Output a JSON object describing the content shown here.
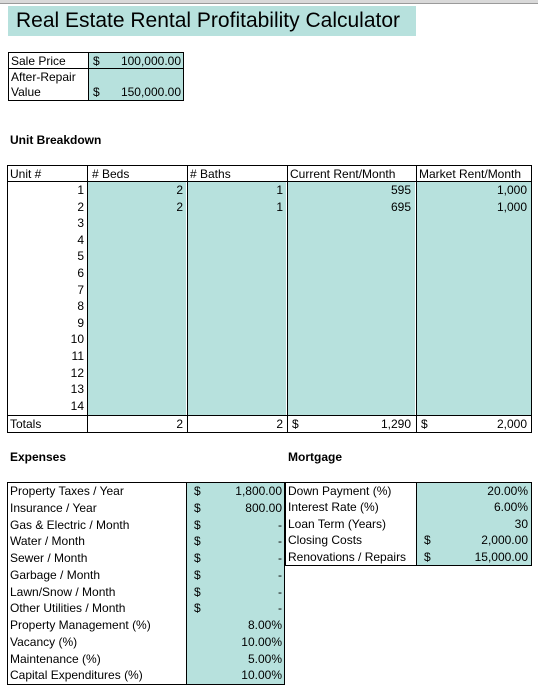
{
  "title": "Real Estate Rental Profitability Calculator",
  "purchase": {
    "sale_price_label": "Sale Price",
    "sale_price_cur": "$",
    "sale_price_value": "100,000.00",
    "arv_label_1": "After-Repair",
    "arv_label_2": "Value",
    "arv_cur": "$",
    "arv_value": "150,000.00"
  },
  "units": {
    "section_title": "Unit Breakdown",
    "headers": {
      "unit": "Unit #",
      "beds": "# Beds",
      "baths": "# Baths",
      "current": "Current Rent/Month",
      "market": "Market Rent/Month"
    },
    "rows": [
      {
        "unit": "1",
        "beds": "2",
        "baths": "1",
        "current": "595",
        "market": "1,000"
      },
      {
        "unit": "2",
        "beds": "2",
        "baths": "1",
        "current": "695",
        "market": "1,000"
      },
      {
        "unit": "3",
        "beds": "",
        "baths": "",
        "current": "",
        "market": ""
      },
      {
        "unit": "4",
        "beds": "",
        "baths": "",
        "current": "",
        "market": ""
      },
      {
        "unit": "5",
        "beds": "",
        "baths": "",
        "current": "",
        "market": ""
      },
      {
        "unit": "6",
        "beds": "",
        "baths": "",
        "current": "",
        "market": ""
      },
      {
        "unit": "7",
        "beds": "",
        "baths": "",
        "current": "",
        "market": ""
      },
      {
        "unit": "8",
        "beds": "",
        "baths": "",
        "current": "",
        "market": ""
      },
      {
        "unit": "9",
        "beds": "",
        "baths": "",
        "current": "",
        "market": ""
      },
      {
        "unit": "10",
        "beds": "",
        "baths": "",
        "current": "",
        "market": ""
      },
      {
        "unit": "11",
        "beds": "",
        "baths": "",
        "current": "",
        "market": ""
      },
      {
        "unit": "12",
        "beds": "",
        "baths": "",
        "current": "",
        "market": ""
      },
      {
        "unit": "13",
        "beds": "",
        "baths": "",
        "current": "",
        "market": ""
      },
      {
        "unit": "14",
        "beds": "",
        "baths": "",
        "current": "",
        "market": ""
      }
    ],
    "totals": {
      "label": "Totals",
      "beds": "2",
      "baths": "2",
      "current_cur": "$",
      "current": "1,290",
      "market_cur": "$",
      "market": "2,000"
    }
  },
  "expenses": {
    "section_title": "Expenses",
    "items": [
      {
        "label": "Property Taxes / Year",
        "cur": "$",
        "value": "1,800.00"
      },
      {
        "label": "Insurance / Year",
        "cur": "$",
        "value": "800.00"
      },
      {
        "label": "Gas & Electric / Month",
        "cur": "$",
        "value": "-"
      },
      {
        "label": "Water / Month",
        "cur": "$",
        "value": "-"
      },
      {
        "label": "Sewer / Month",
        "cur": "$",
        "value": "-"
      },
      {
        "label": "Garbage / Month",
        "cur": "$",
        "value": "-"
      },
      {
        "label": "Lawn/Snow / Month",
        "cur": "$",
        "value": "-"
      },
      {
        "label": "Other Utilities / Month",
        "cur": "$",
        "value": "-"
      },
      {
        "label": "Property Management (%)",
        "cur": "",
        "value": "8.00%"
      },
      {
        "label": "Vacancy (%)",
        "cur": "",
        "value": "10.00%"
      },
      {
        "label": "Maintenance (%)",
        "cur": "",
        "value": "5.00%"
      },
      {
        "label": "Capital Expenditures (%)",
        "cur": "",
        "value": "10.00%"
      }
    ]
  },
  "mortgage": {
    "section_title": "Mortgage",
    "items": [
      {
        "label": "Down Payment (%)",
        "cur": "",
        "value": "20.00%"
      },
      {
        "label": "Interest Rate (%)",
        "cur": "",
        "value": "6.00%"
      },
      {
        "label": "Loan Term (Years)",
        "cur": "",
        "value": "30"
      },
      {
        "label": "Closing Costs",
        "cur": "$",
        "value": "2,000.00"
      },
      {
        "label": "Renovations / Repairs",
        "cur": "$",
        "value": "15,000.00"
      }
    ]
  },
  "colors": {
    "input_fill": "#b7e1dd",
    "border": "#000000"
  }
}
